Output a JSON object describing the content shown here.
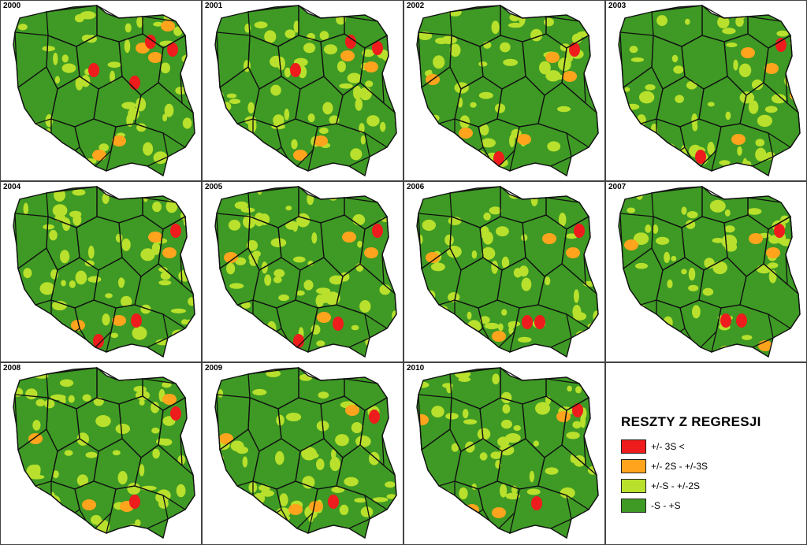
{
  "maps": [
    {
      "year": "2000",
      "red": [
        [
          190,
          52
        ],
        [
          218,
          62
        ],
        [
          118,
          88
        ],
        [
          170,
          104
        ]
      ],
      "orange": [
        [
          212,
          32
        ],
        [
          196,
          72
        ],
        [
          180,
          60
        ],
        [
          125,
          196
        ],
        [
          150,
          178
        ]
      ]
    },
    {
      "year": "2001",
      "red": [
        [
          444,
          52
        ],
        [
          478,
          60
        ],
        [
          374,
          88
        ]
      ],
      "orange": [
        [
          440,
          70
        ],
        [
          470,
          84
        ],
        [
          380,
          196
        ],
        [
          406,
          178
        ]
      ]
    },
    {
      "year": "2002",
      "red": [
        [
          728,
          62
        ],
        [
          632,
          200
        ]
      ],
      "orange": [
        [
          700,
          72
        ],
        [
          722,
          96
        ],
        [
          548,
          100
        ],
        [
          664,
          176
        ],
        [
          590,
          168
        ]
      ]
    },
    {
      "year": "2003",
      "red": [
        [
          990,
          56
        ],
        [
          888,
          198
        ]
      ],
      "orange": [
        [
          948,
          66
        ],
        [
          978,
          86
        ],
        [
          936,
          176
        ],
        [
          1010,
          120
        ]
      ]
    },
    {
      "year": "2004",
      "red": [
        [
          222,
          292
        ],
        [
          124,
          432
        ],
        [
          172,
          406
        ]
      ],
      "orange": [
        [
          196,
          300
        ],
        [
          214,
          320
        ],
        [
          150,
          406
        ],
        [
          98,
          412
        ]
      ]
    },
    {
      "year": "2005",
      "red": [
        [
          478,
          292
        ],
        [
          378,
          432
        ],
        [
          428,
          410
        ]
      ],
      "orange": [
        [
          442,
          300
        ],
        [
          470,
          320
        ],
        [
          292,
          326
        ],
        [
          410,
          402
        ]
      ]
    },
    {
      "year": "2006",
      "red": [
        [
          734,
          292
        ],
        [
          668,
          408
        ],
        [
          684,
          408
        ]
      ],
      "orange": [
        [
          696,
          302
        ],
        [
          726,
          320
        ],
        [
          548,
          326
        ],
        [
          632,
          426
        ]
      ]
    },
    {
      "year": "2007",
      "red": [
        [
          988,
          292
        ],
        [
          920,
          406
        ],
        [
          940,
          406
        ]
      ],
      "orange": [
        [
          958,
          302
        ],
        [
          980,
          320
        ],
        [
          800,
          310
        ],
        [
          970,
          438
        ]
      ]
    },
    {
      "year": "2008",
      "red": [
        [
          222,
          524
        ],
        [
          170,
          636
        ]
      ],
      "orange": [
        [
          214,
          506
        ],
        [
          44,
          556
        ],
        [
          160,
          642
        ],
        [
          112,
          640
        ]
      ]
    },
    {
      "year": "2009",
      "red": [
        [
          474,
          528
        ],
        [
          422,
          636
        ]
      ],
      "orange": [
        [
          446,
          520
        ],
        [
          286,
          556
        ],
        [
          400,
          642
        ],
        [
          374,
          646
        ]
      ]
    },
    {
      "year": "2010",
      "red": [
        [
          732,
          520
        ],
        [
          680,
          638
        ]
      ],
      "orange": [
        [
          714,
          528
        ],
        [
          534,
          532
        ],
        [
          632,
          650
        ],
        [
          598,
          646
        ]
      ]
    }
  ],
  "legend": {
    "title": "RESZTY Z REGRESJI",
    "items": [
      {
        "label": "+/- 3S <",
        "color": "#ee1c1c"
      },
      {
        "label": "+/- 2S - +/-3S",
        "color": "#ffa41c"
      },
      {
        "label": "+/-S - +/-2S",
        "color": "#b8e02c"
      },
      {
        "label": "-S - +S",
        "color": "#3e9a24"
      }
    ]
  },
  "colors": {
    "base": "#3e9a24",
    "light": "#b8e02c",
    "orange": "#ffa41c",
    "red": "#ee1c1c",
    "border": "#111111"
  }
}
